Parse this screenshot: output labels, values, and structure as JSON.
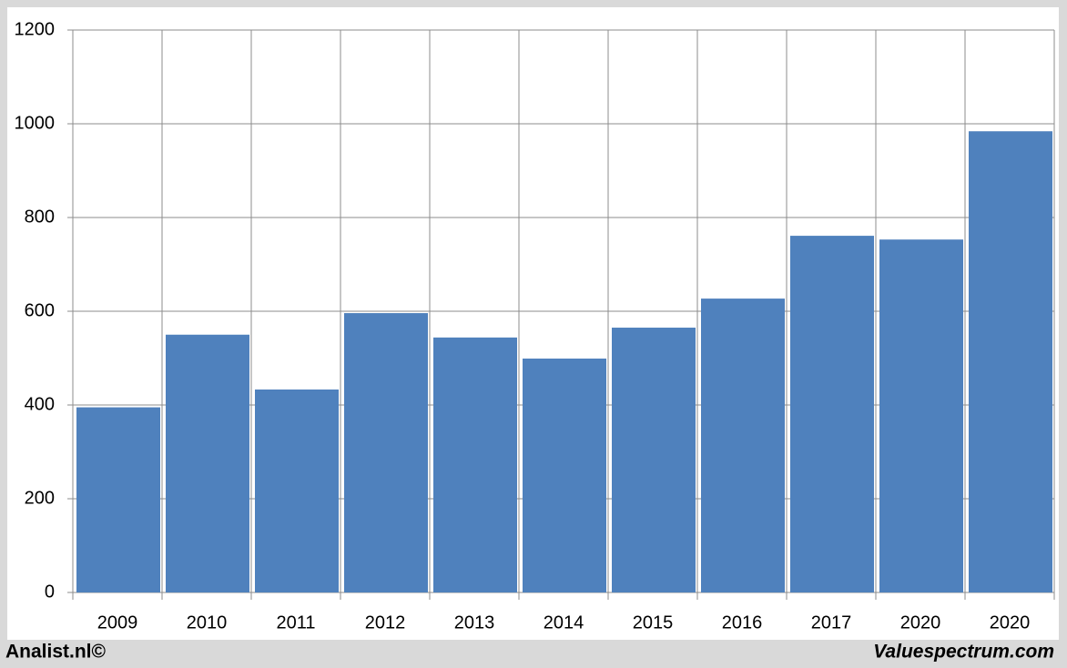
{
  "chart_data": {
    "type": "bar",
    "categories": [
      "2009",
      "2010",
      "2011",
      "2012",
      "2013",
      "2014",
      "2015",
      "2016",
      "2017",
      "2020",
      "2020"
    ],
    "values": [
      395,
      550,
      433,
      596,
      544,
      499,
      565,
      627,
      761,
      753,
      984
    ],
    "color": "#4f81bd",
    "ylim": [
      0,
      1200
    ],
    "yticks": [
      0,
      200,
      400,
      600,
      800,
      1000,
      1200
    ],
    "grid": true,
    "credit_left": "Analist.nl©",
    "credit_right": "Valuespectrum.com"
  }
}
